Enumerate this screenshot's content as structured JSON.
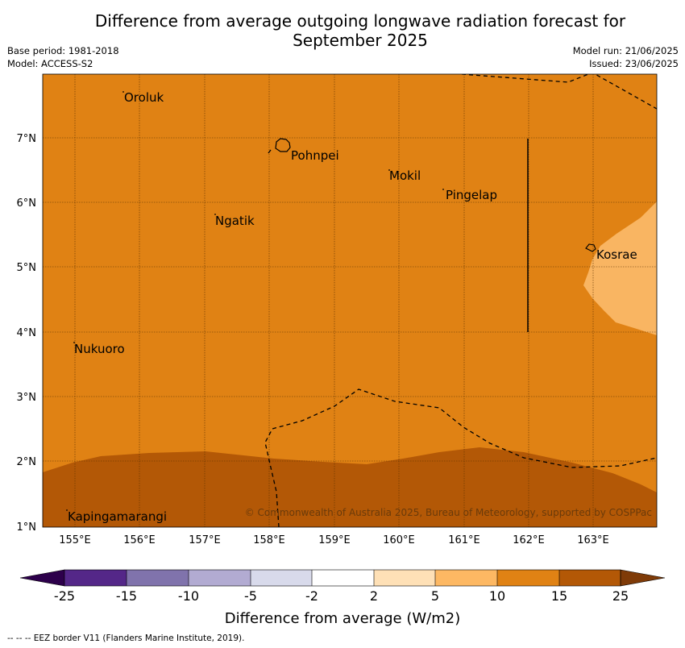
{
  "title_line1": "Difference from average outgoing longwave radiation forecast for",
  "title_line2": "September 2025",
  "meta": {
    "base_period": "Base period: 1981-2018",
    "model": "Model: ACCESS-S2",
    "model_run": "Model run: 21/06/2025",
    "issued": "Issued: 23/06/2025"
  },
  "map": {
    "lat_ticks": [
      "1°N",
      "2°N",
      "3°N",
      "4°N",
      "5°N",
      "6°N",
      "7°N"
    ],
    "lon_ticks": [
      "155°E",
      "156°E",
      "157°E",
      "158°E",
      "159°E",
      "160°E",
      "161°E",
      "162°E",
      "163°E"
    ],
    "places": [
      {
        "name": "Oroluk"
      },
      {
        "name": "Pohnpei"
      },
      {
        "name": "Mokil"
      },
      {
        "name": "Pingelap"
      },
      {
        "name": "Ngatik"
      },
      {
        "name": "Kosrae"
      },
      {
        "name": "Nukuoro"
      },
      {
        "name": "Kapingamarangi"
      }
    ],
    "copyright": "© Commonwealth of Australia 2025, Bureau of Meteorology, supported by COSPPac",
    "colors": {
      "band_5_10": "#f9b562",
      "band_10_15": "#e08214",
      "band_15_25": "#b35806"
    }
  },
  "colorbar": {
    "label": "Difference from average (W/m2)",
    "ticks": [
      "-25",
      "-15",
      "-10",
      "-5",
      "-2",
      "2",
      "5",
      "10",
      "15",
      "25"
    ],
    "colors": [
      "#2d004b",
      "#542788",
      "#8073ac",
      "#b2abd2",
      "#d8daeb",
      "#ffffff",
      "#fee0b6",
      "#fdb863",
      "#e08214",
      "#b35806",
      "#7f3b08"
    ]
  },
  "footnote": "-- -- -- EEZ border V11 (Flanders Marine Institute, 2019)."
}
